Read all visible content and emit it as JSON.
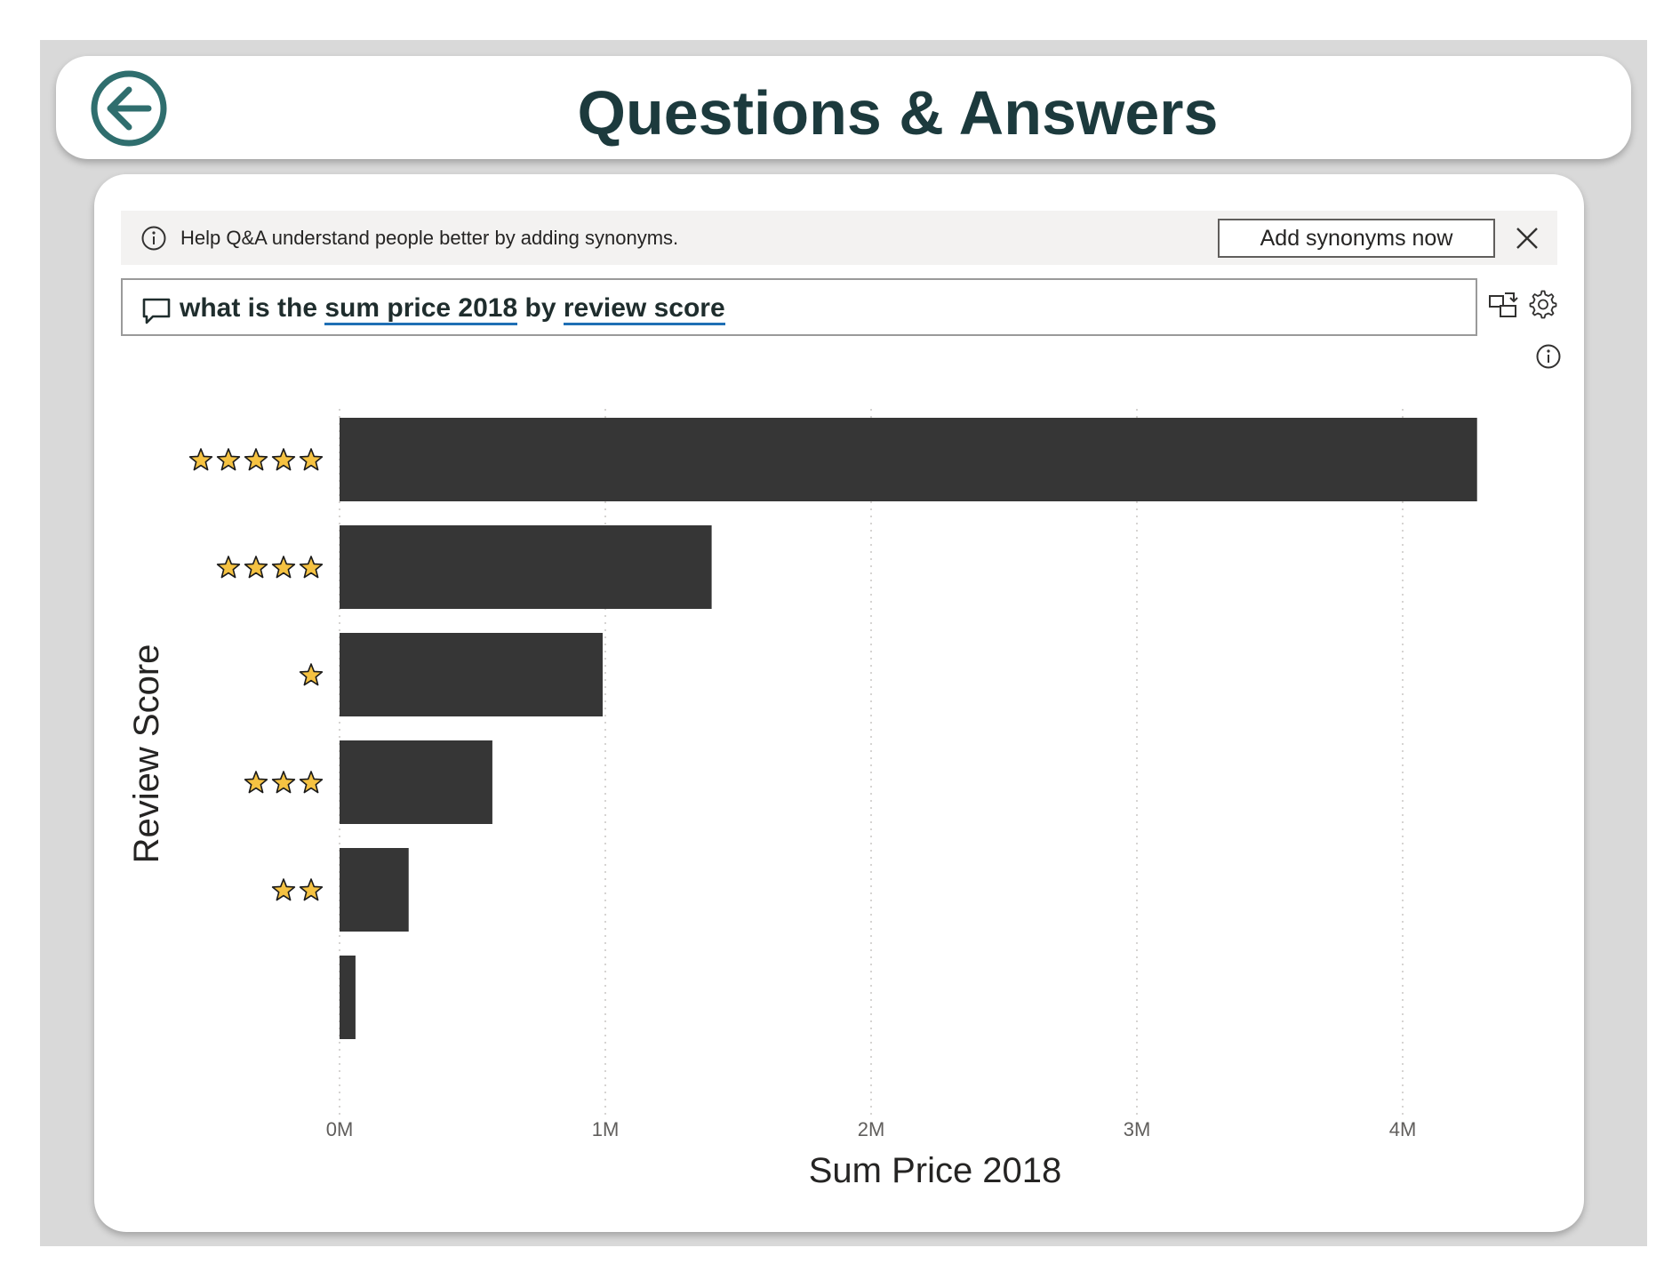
{
  "header": {
    "title": "Questions & Answers",
    "back_icon": "back-arrow-icon"
  },
  "banner": {
    "info_icon": "info-icon",
    "text": "Help Q&A understand people better by adding synonyms.",
    "action_label": "Add synonyms now",
    "close_icon": "close-icon"
  },
  "question": {
    "icon": "chat-bubble-icon",
    "parts": [
      "what is the ",
      "sum price 2018",
      " by ",
      "review score"
    ]
  },
  "toolbar": {
    "icons": [
      "turn-into-visual-icon",
      "settings-gear-icon",
      "info-icon"
    ]
  },
  "colors": {
    "bar": "#363636",
    "star_fill": "#f5c242",
    "title": "#1c3a3d",
    "term_underline": "#1f6fb5"
  },
  "chart_data": {
    "type": "bar",
    "orientation": "horizontal",
    "xlabel": "Sum Price 2018",
    "ylabel": "Review Score",
    "x_ticks": [
      "0M",
      "1M",
      "2M",
      "3M",
      "4M"
    ],
    "xlim": [
      0,
      4400000
    ],
    "grid": "vertical-dotted",
    "categories": [
      {
        "stars": 5
      },
      {
        "stars": 4
      },
      {
        "stars": 1
      },
      {
        "stars": 3
      },
      {
        "stars": 2
      },
      {
        "stars": 0
      }
    ],
    "values": [
      4280000,
      1400000,
      990000,
      575000,
      260000,
      60000
    ]
  }
}
